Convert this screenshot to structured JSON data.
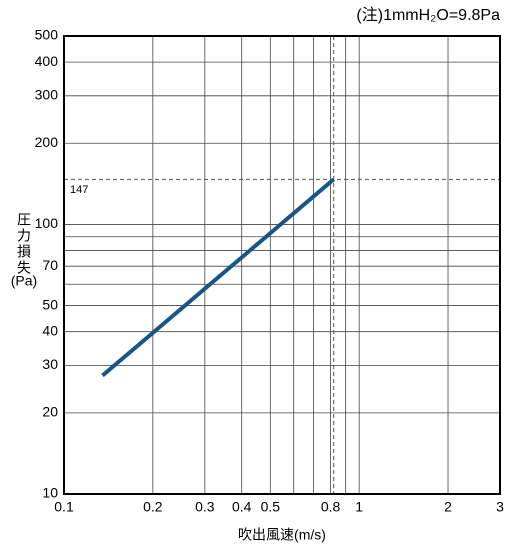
{
  "chart_data": {
    "type": "line",
    "note": "(注)1mmH₂O=9.8Pa",
    "xlabel": "吹出風速(m/s)",
    "ylabel": "圧力損失",
    "ylabel_unit": "(Pa)",
    "x": [
      0.135,
      0.82
    ],
    "series": [
      {
        "color": "#1a5585",
        "values": [
          27.5,
          147
        ]
      }
    ],
    "xscale": "log",
    "yscale": "log",
    "xlim": [
      0.1,
      3
    ],
    "ylim": [
      10,
      500
    ],
    "xticks": [
      0.1,
      0.2,
      0.3,
      0.4,
      0.5,
      0.8,
      1,
      2,
      3
    ],
    "xminor": [
      0.6,
      0.7,
      0.9
    ],
    "yticks": [
      10,
      20,
      30,
      40,
      50,
      70,
      100,
      200,
      300,
      400,
      500
    ],
    "yminor": [
      60,
      80,
      90
    ],
    "reference_y": 147,
    "reference_x": 0.82,
    "grid": true
  }
}
